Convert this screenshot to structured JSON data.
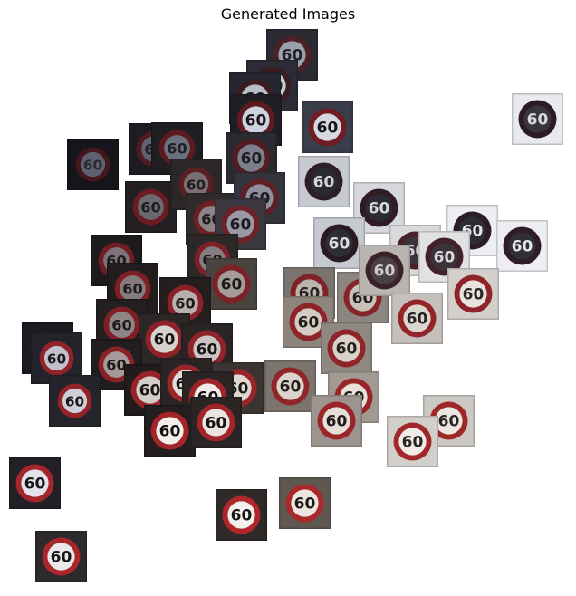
{
  "title": "Generated Images",
  "sign_text": "60",
  "colors": {
    "ring_red": "#b3262b",
    "sign_white": "#f2f2f2",
    "text_dark": "#1a1a1a"
  },
  "tile_style_groups": [
    "dark-night",
    "dim-grey",
    "overcast-light"
  ]
}
